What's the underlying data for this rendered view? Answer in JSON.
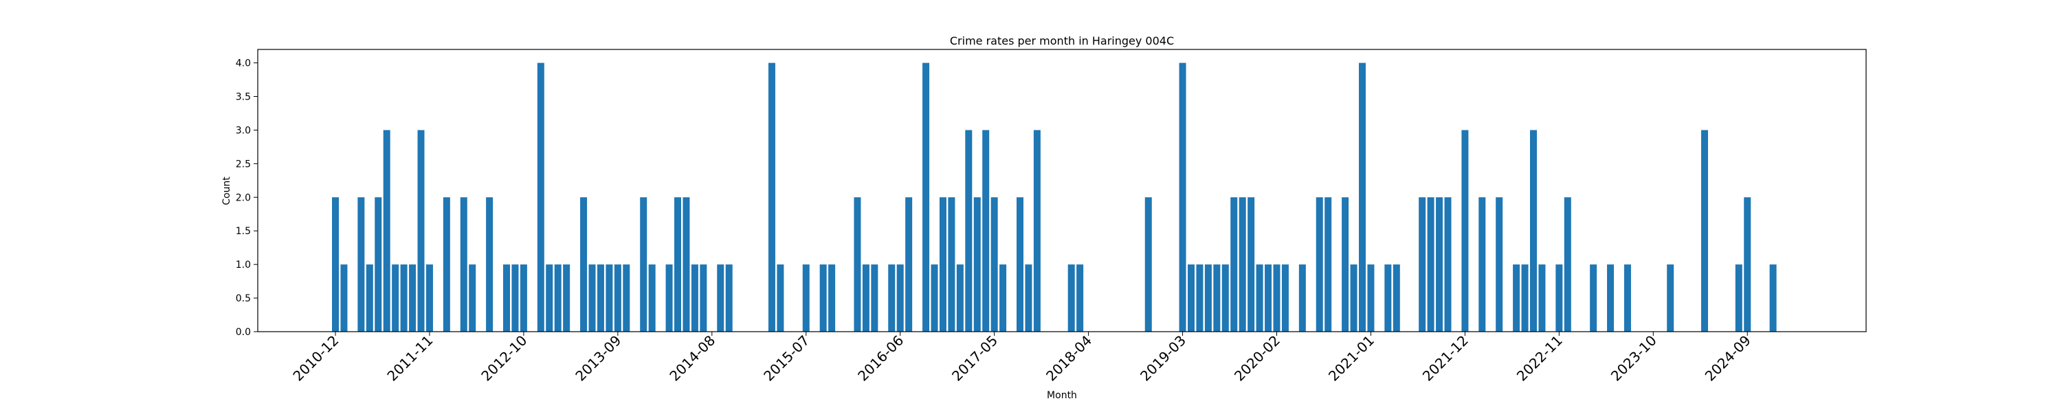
{
  "chart_data": {
    "type": "bar",
    "title": "Crime rates per month in Haringey 004C",
    "xlabel": "Month",
    "ylabel": "Count",
    "ylim": [
      0,
      4.2
    ],
    "yticks": [
      "0.0",
      "0.5",
      "1.0",
      "1.5",
      "2.0",
      "2.5",
      "3.0",
      "3.5",
      "4.0"
    ],
    "xticks": [
      "2010-12",
      "2011-11",
      "2012-10",
      "2013-09",
      "2014-08",
      "2015-07",
      "2016-06",
      "2017-05",
      "2018-04",
      "2019-03",
      "2020-02",
      "2021-01",
      "2021-12",
      "2022-11",
      "2023-10",
      "2024-09"
    ],
    "color": "#1f77b4",
    "grid": false,
    "legend": "none",
    "series": [
      {
        "values": [
          {
            "x": "2010-12",
            "y": 2
          },
          {
            "x": "2011-01",
            "y": 1
          },
          {
            "x": "2011-03",
            "y": 2
          },
          {
            "x": "2011-04",
            "y": 1
          },
          {
            "x": "2011-05",
            "y": 2
          },
          {
            "x": "2011-06",
            "y": 3
          },
          {
            "x": "2011-07",
            "y": 1
          },
          {
            "x": "2011-08",
            "y": 1
          },
          {
            "x": "2011-09",
            "y": 1
          },
          {
            "x": "2011-10",
            "y": 3
          },
          {
            "x": "2011-11",
            "y": 1
          },
          {
            "x": "2012-01",
            "y": 2
          },
          {
            "x": "2012-03",
            "y": 2
          },
          {
            "x": "2012-04",
            "y": 1
          },
          {
            "x": "2012-06",
            "y": 2
          },
          {
            "x": "2012-08",
            "y": 1
          },
          {
            "x": "2012-09",
            "y": 1
          },
          {
            "x": "2012-10",
            "y": 1
          },
          {
            "x": "2012-12",
            "y": 4
          },
          {
            "x": "2013-01",
            "y": 1
          },
          {
            "x": "2013-02",
            "y": 1
          },
          {
            "x": "2013-03",
            "y": 1
          },
          {
            "x": "2013-05",
            "y": 2
          },
          {
            "x": "2013-06",
            "y": 1
          },
          {
            "x": "2013-07",
            "y": 1
          },
          {
            "x": "2013-08",
            "y": 1
          },
          {
            "x": "2013-09",
            "y": 1
          },
          {
            "x": "2013-10",
            "y": 1
          },
          {
            "x": "2013-12",
            "y": 2
          },
          {
            "x": "2014-01",
            "y": 1
          },
          {
            "x": "2014-03",
            "y": 1
          },
          {
            "x": "2014-04",
            "y": 2
          },
          {
            "x": "2014-05",
            "y": 2
          },
          {
            "x": "2014-06",
            "y": 1
          },
          {
            "x": "2014-07",
            "y": 1
          },
          {
            "x": "2014-09",
            "y": 1
          },
          {
            "x": "2014-10",
            "y": 1
          },
          {
            "x": "2015-03",
            "y": 4
          },
          {
            "x": "2015-04",
            "y": 1
          },
          {
            "x": "2015-07",
            "y": 1
          },
          {
            "x": "2015-09",
            "y": 1
          },
          {
            "x": "2015-10",
            "y": 1
          },
          {
            "x": "2016-01",
            "y": 2
          },
          {
            "x": "2016-02",
            "y": 1
          },
          {
            "x": "2016-03",
            "y": 1
          },
          {
            "x": "2016-05",
            "y": 1
          },
          {
            "x": "2016-06",
            "y": 1
          },
          {
            "x": "2016-07",
            "y": 2
          },
          {
            "x": "2016-09",
            "y": 4
          },
          {
            "x": "2016-10",
            "y": 1
          },
          {
            "x": "2016-11",
            "y": 2
          },
          {
            "x": "2016-12",
            "y": 2
          },
          {
            "x": "2017-01",
            "y": 1
          },
          {
            "x": "2017-02",
            "y": 3
          },
          {
            "x": "2017-03",
            "y": 2
          },
          {
            "x": "2017-04",
            "y": 3
          },
          {
            "x": "2017-05",
            "y": 2
          },
          {
            "x": "2017-06",
            "y": 1
          },
          {
            "x": "2017-08",
            "y": 2
          },
          {
            "x": "2017-09",
            "y": 1
          },
          {
            "x": "2017-10",
            "y": 3
          },
          {
            "x": "2018-02",
            "y": 1
          },
          {
            "x": "2018-03",
            "y": 1
          },
          {
            "x": "2018-11",
            "y": 2
          },
          {
            "x": "2019-03",
            "y": 4
          },
          {
            "x": "2019-04",
            "y": 1
          },
          {
            "x": "2019-05",
            "y": 1
          },
          {
            "x": "2019-06",
            "y": 1
          },
          {
            "x": "2019-07",
            "y": 1
          },
          {
            "x": "2019-08",
            "y": 1
          },
          {
            "x": "2019-09",
            "y": 2
          },
          {
            "x": "2019-10",
            "y": 2
          },
          {
            "x": "2019-11",
            "y": 2
          },
          {
            "x": "2019-12",
            "y": 1
          },
          {
            "x": "2020-01",
            "y": 1
          },
          {
            "x": "2020-02",
            "y": 1
          },
          {
            "x": "2020-03",
            "y": 1
          },
          {
            "x": "2020-05",
            "y": 1
          },
          {
            "x": "2020-07",
            "y": 2
          },
          {
            "x": "2020-08",
            "y": 2
          },
          {
            "x": "2020-10",
            "y": 2
          },
          {
            "x": "2020-11",
            "y": 1
          },
          {
            "x": "2020-12",
            "y": 4
          },
          {
            "x": "2021-01",
            "y": 1
          },
          {
            "x": "2021-03",
            "y": 1
          },
          {
            "x": "2021-04",
            "y": 1
          },
          {
            "x": "2021-07",
            "y": 2
          },
          {
            "x": "2021-08",
            "y": 2
          },
          {
            "x": "2021-09",
            "y": 2
          },
          {
            "x": "2021-10",
            "y": 2
          },
          {
            "x": "2021-12",
            "y": 3
          },
          {
            "x": "2022-02",
            "y": 2
          },
          {
            "x": "2022-04",
            "y": 2
          },
          {
            "x": "2022-06",
            "y": 1
          },
          {
            "x": "2022-07",
            "y": 1
          },
          {
            "x": "2022-08",
            "y": 3
          },
          {
            "x": "2022-09",
            "y": 1
          },
          {
            "x": "2022-11",
            "y": 1
          },
          {
            "x": "2022-12",
            "y": 2
          },
          {
            "x": "2023-03",
            "y": 1
          },
          {
            "x": "2023-05",
            "y": 1
          },
          {
            "x": "2023-07",
            "y": 1
          },
          {
            "x": "2023-12",
            "y": 1
          },
          {
            "x": "2024-04",
            "y": 3
          },
          {
            "x": "2024-08",
            "y": 1
          },
          {
            "x": "2024-09",
            "y": 2
          },
          {
            "x": "2024-12",
            "y": 1
          }
        ]
      }
    ]
  }
}
